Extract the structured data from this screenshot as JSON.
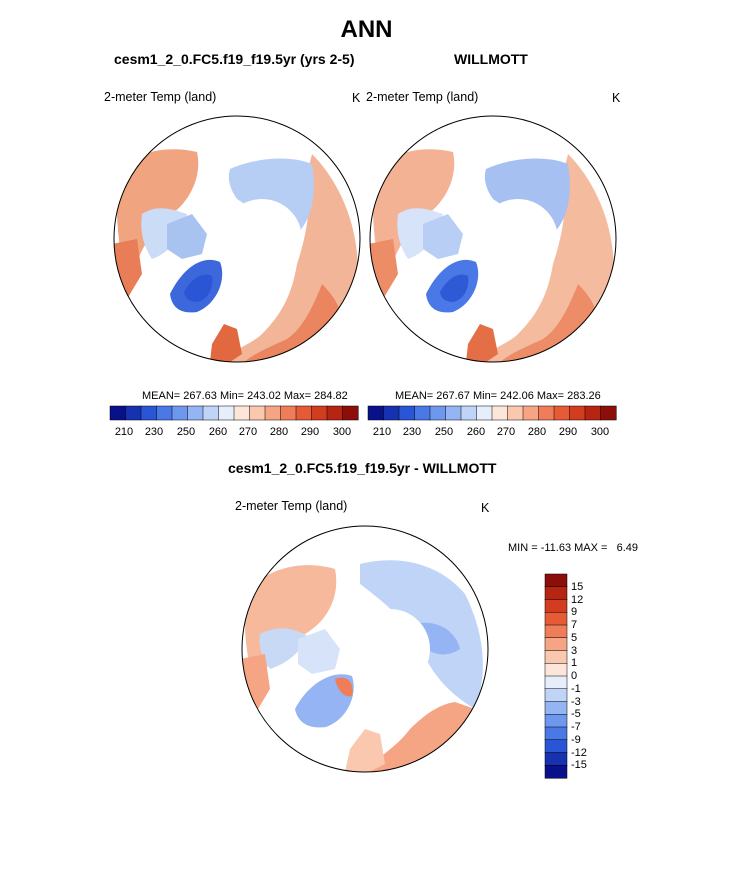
{
  "title": "ANN",
  "panels": {
    "model": {
      "title": "cesm1_2_0.FC5.f19_f19.5yr (yrs 2-5)",
      "variable": "2-meter Temp (land)",
      "units": "K",
      "stats": "MEAN= 267.63  Min= 243.02  Max= 284.82"
    },
    "obs": {
      "title": "WILLMOTT",
      "variable": "2-meter Temp (land)",
      "units": "K",
      "stats": "MEAN= 267.67  Min= 242.06  Max= 283.26"
    },
    "diff": {
      "title": "cesm1_2_0.FC5.f19_f19.5yr - WILLMOTT",
      "variable": "2-meter Temp (land)",
      "units": "K",
      "stats": "MIN = -11.63 MAX =   6.49"
    }
  },
  "colorbars": {
    "temp": {
      "tick_labels": [
        "210",
        "230",
        "250",
        "260",
        "270",
        "280",
        "290",
        "300"
      ],
      "colors": [
        "#08108a",
        "#1732b0",
        "#2a55d4",
        "#4a78e6",
        "#6e97ee",
        "#95b4f3",
        "#c0d4f7",
        "#e6eefb",
        "#fbe6d9",
        "#f9c8ae",
        "#f6a584",
        "#f07d59",
        "#e65a36",
        "#d23c1f",
        "#b52512",
        "#8b0f08"
      ]
    },
    "diff": {
      "tick_labels": [
        "15",
        "12",
        "9",
        "7",
        "5",
        "3",
        "1",
        "0",
        "-1",
        "-3",
        "-5",
        "-7",
        "-9",
        "-12",
        "-15"
      ],
      "colors": [
        "#8b0f08",
        "#b52512",
        "#d23c1f",
        "#e65a36",
        "#f07d59",
        "#f6a584",
        "#f9c8ae",
        "#fbe6d9",
        "#e6eefb",
        "#c0d4f7",
        "#95b4f3",
        "#6e97ee",
        "#4a78e6",
        "#2a55d4",
        "#1732b0",
        "#08108a"
      ]
    }
  }
}
